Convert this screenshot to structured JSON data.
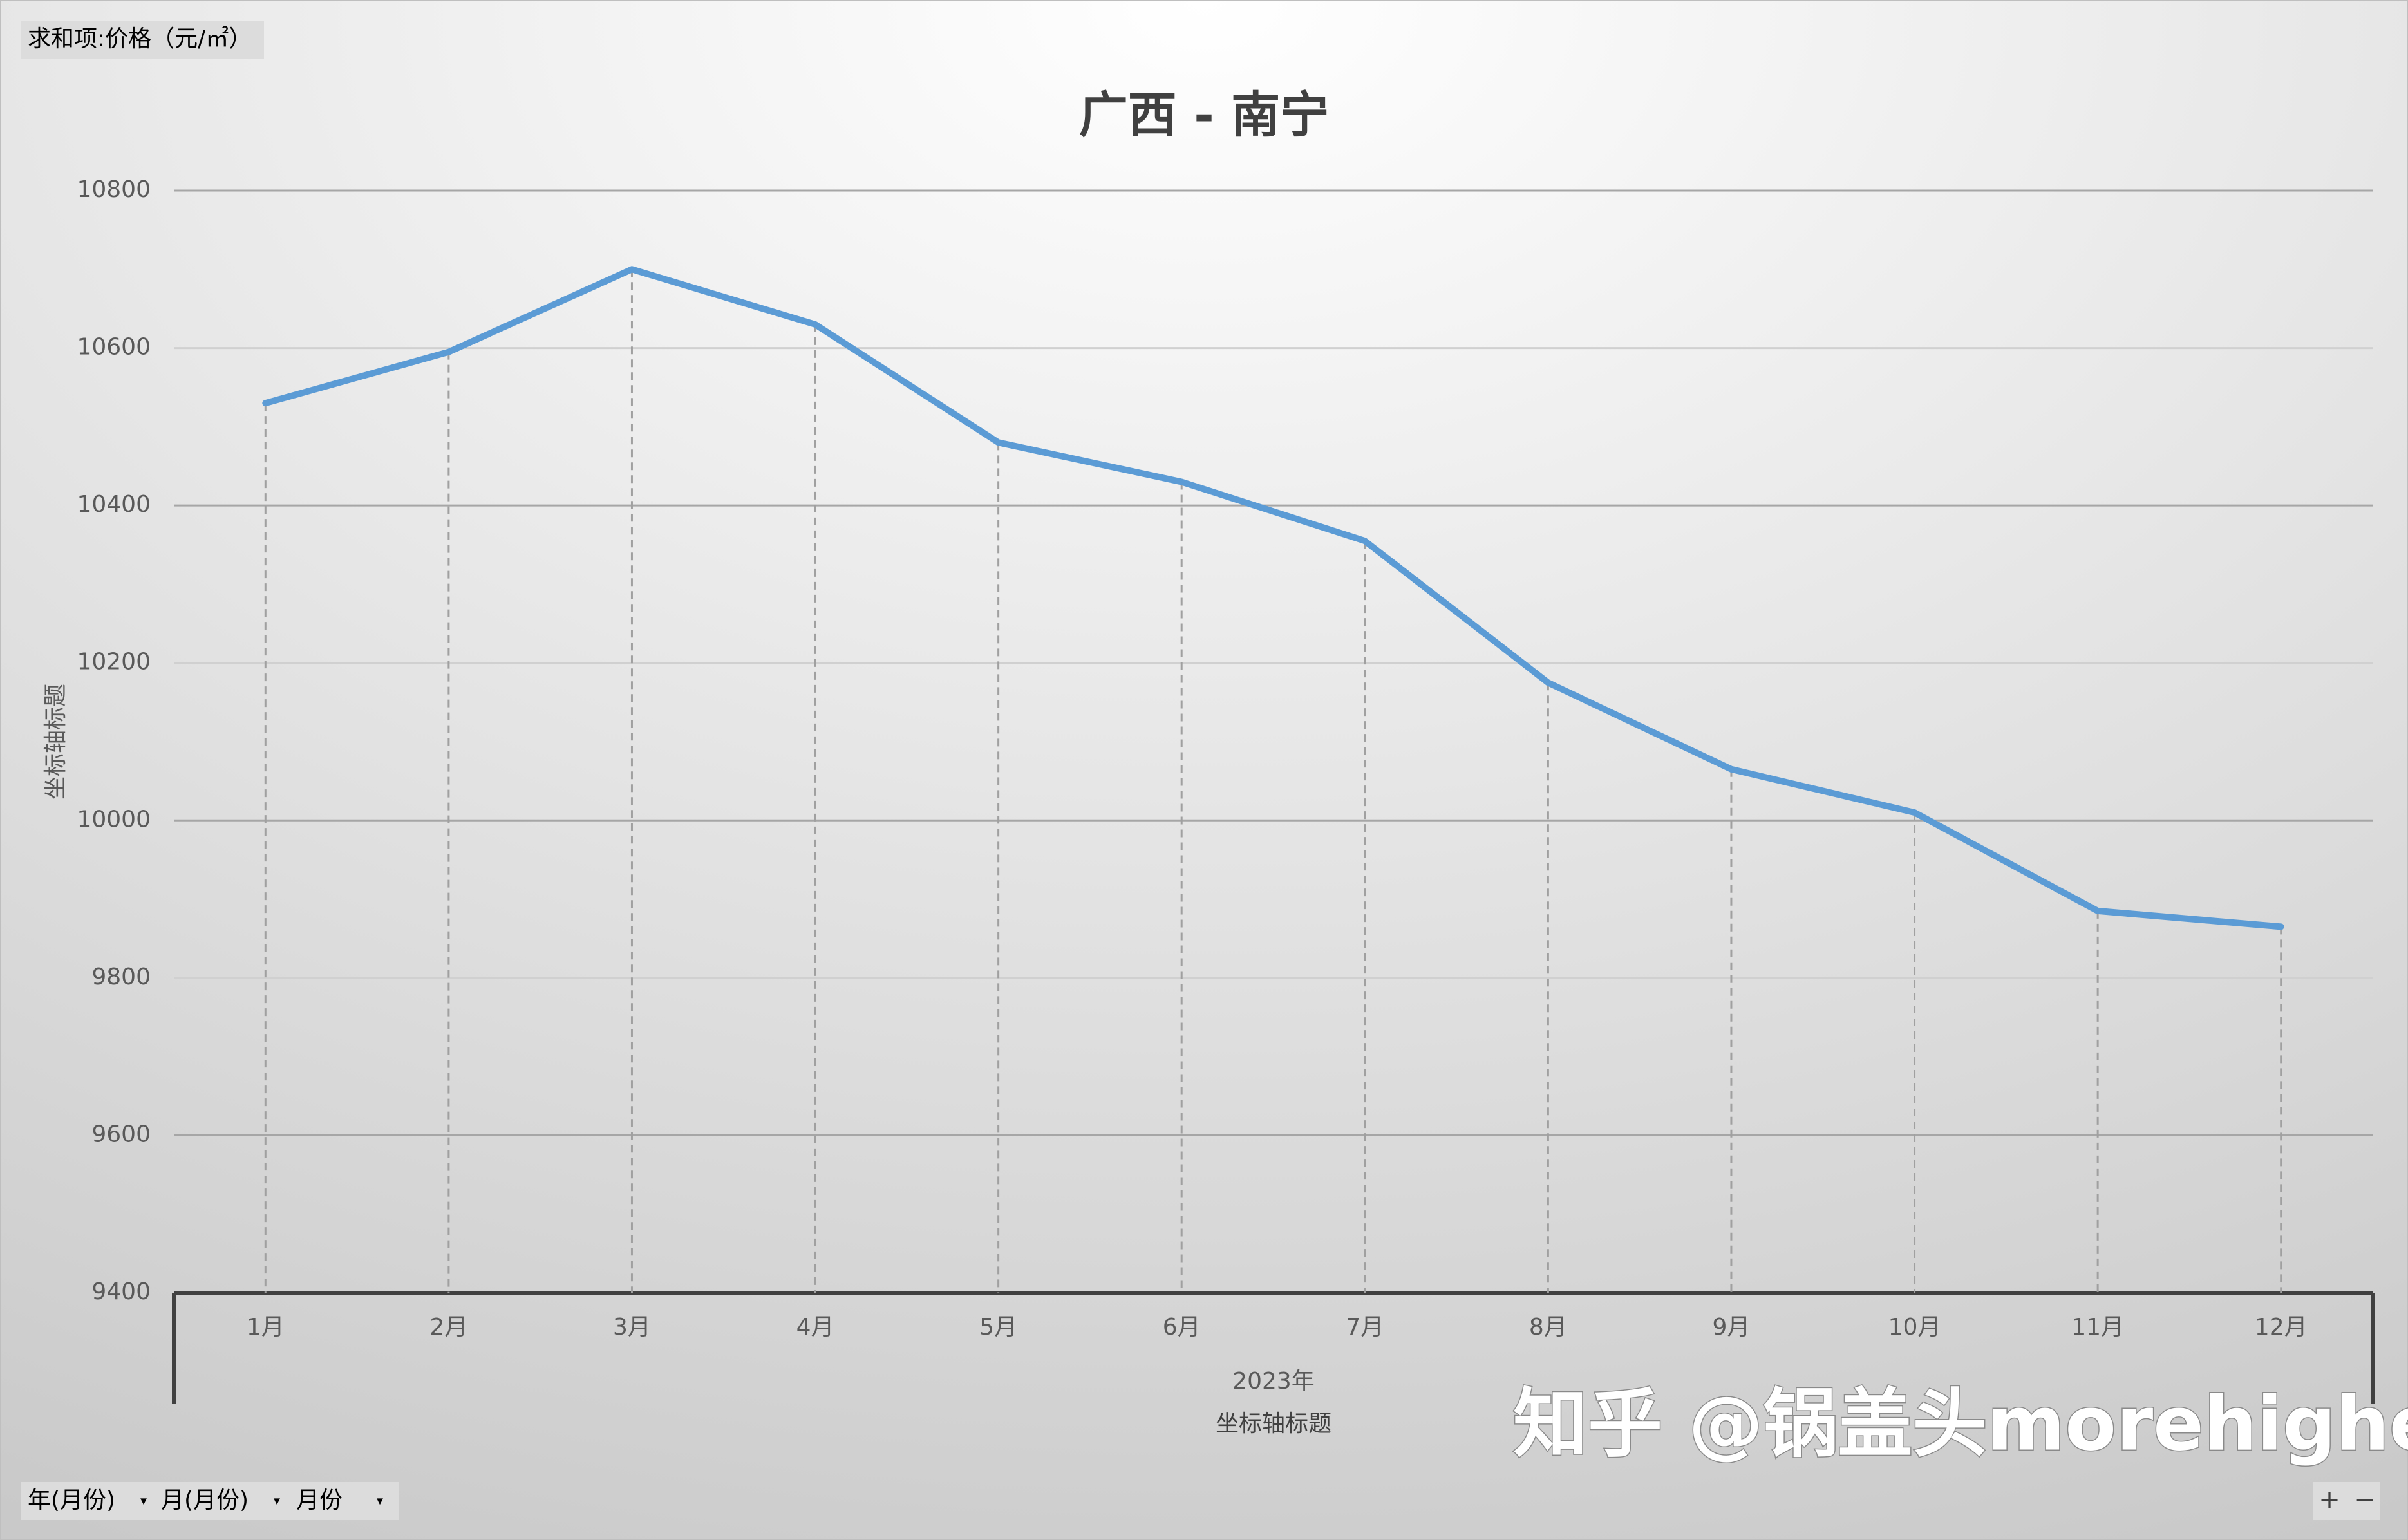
{
  "chart_data": {
    "type": "line",
    "title": "广西 - 南宁",
    "y_label": "坐标轴标题",
    "x_label": "坐标轴标题",
    "group_label": "2023年",
    "categories": [
      "1月",
      "2月",
      "3月",
      "4月",
      "5月",
      "6月",
      "7月",
      "8月",
      "9月",
      "10月",
      "11月",
      "12月"
    ],
    "series": [
      {
        "name": "价格",
        "color": "#5b9bd5",
        "values": [
          10530,
          10595,
          10700,
          10630,
          10480,
          10430,
          10355,
          10175,
          10065,
          10010,
          9885,
          9865
        ]
      }
    ],
    "ylim": [
      9400,
      10800
    ],
    "yticks": [
      9400,
      9600,
      9800,
      10000,
      10200,
      10400,
      10600,
      10800
    ],
    "grid": true,
    "drop_lines": true
  },
  "ui": {
    "field_button": "求和项:价格（元/㎡）",
    "filter_buttons": [
      "年(月份)",
      "月(月份)",
      "月份"
    ],
    "zoom_buttons": [
      "+",
      "−"
    ],
    "watermark": "知乎 @锅盖头morehigher"
  }
}
